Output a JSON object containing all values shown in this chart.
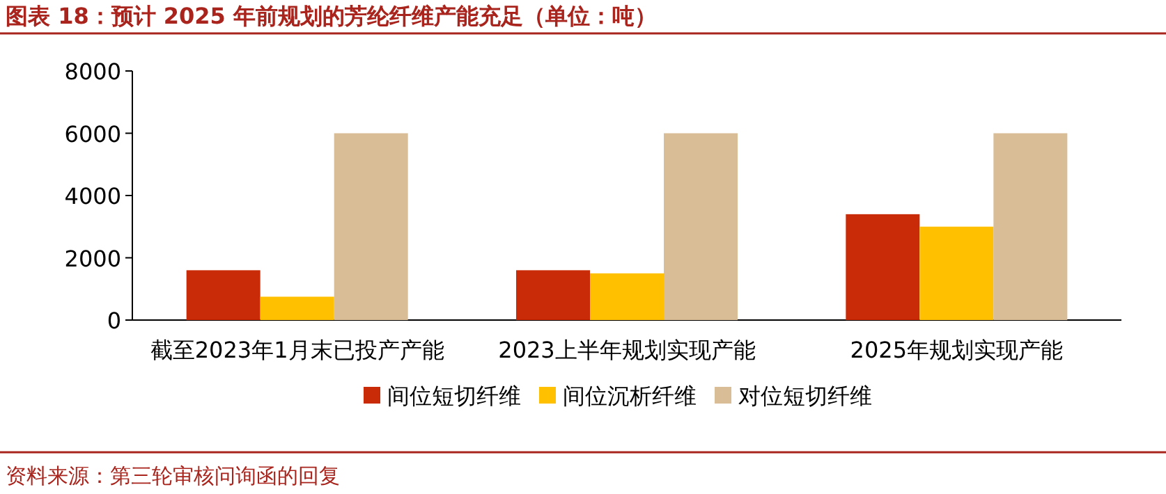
{
  "chart_data": {
    "type": "bar",
    "title": "图表 18：预计 2025 年前规划的芳纶纤维产能充足（单位：吨）",
    "categories": [
      "截至2023年1月末已投产产能",
      "2023上半年规划实现产能",
      "2025年规划实现产能"
    ],
    "series": [
      {
        "name": "间位短切纤维",
        "color": "#c92a08",
        "values": [
          1600,
          1600,
          3400
        ]
      },
      {
        "name": "间位沉析纤维",
        "color": "#ffc000",
        "values": [
          750,
          1500,
          3000
        ]
      },
      {
        "name": "对位短切纤维",
        "color": "#d9bd96",
        "values": [
          6000,
          6000,
          6000
        ]
      }
    ],
    "ylim": [
      0,
      8000
    ],
    "yticks": [
      0,
      2000,
      4000,
      6000,
      8000
    ],
    "grid": false,
    "legend": "bottom",
    "annotations": [
      "资料来源：第三轮审核问询函的回复"
    ]
  }
}
